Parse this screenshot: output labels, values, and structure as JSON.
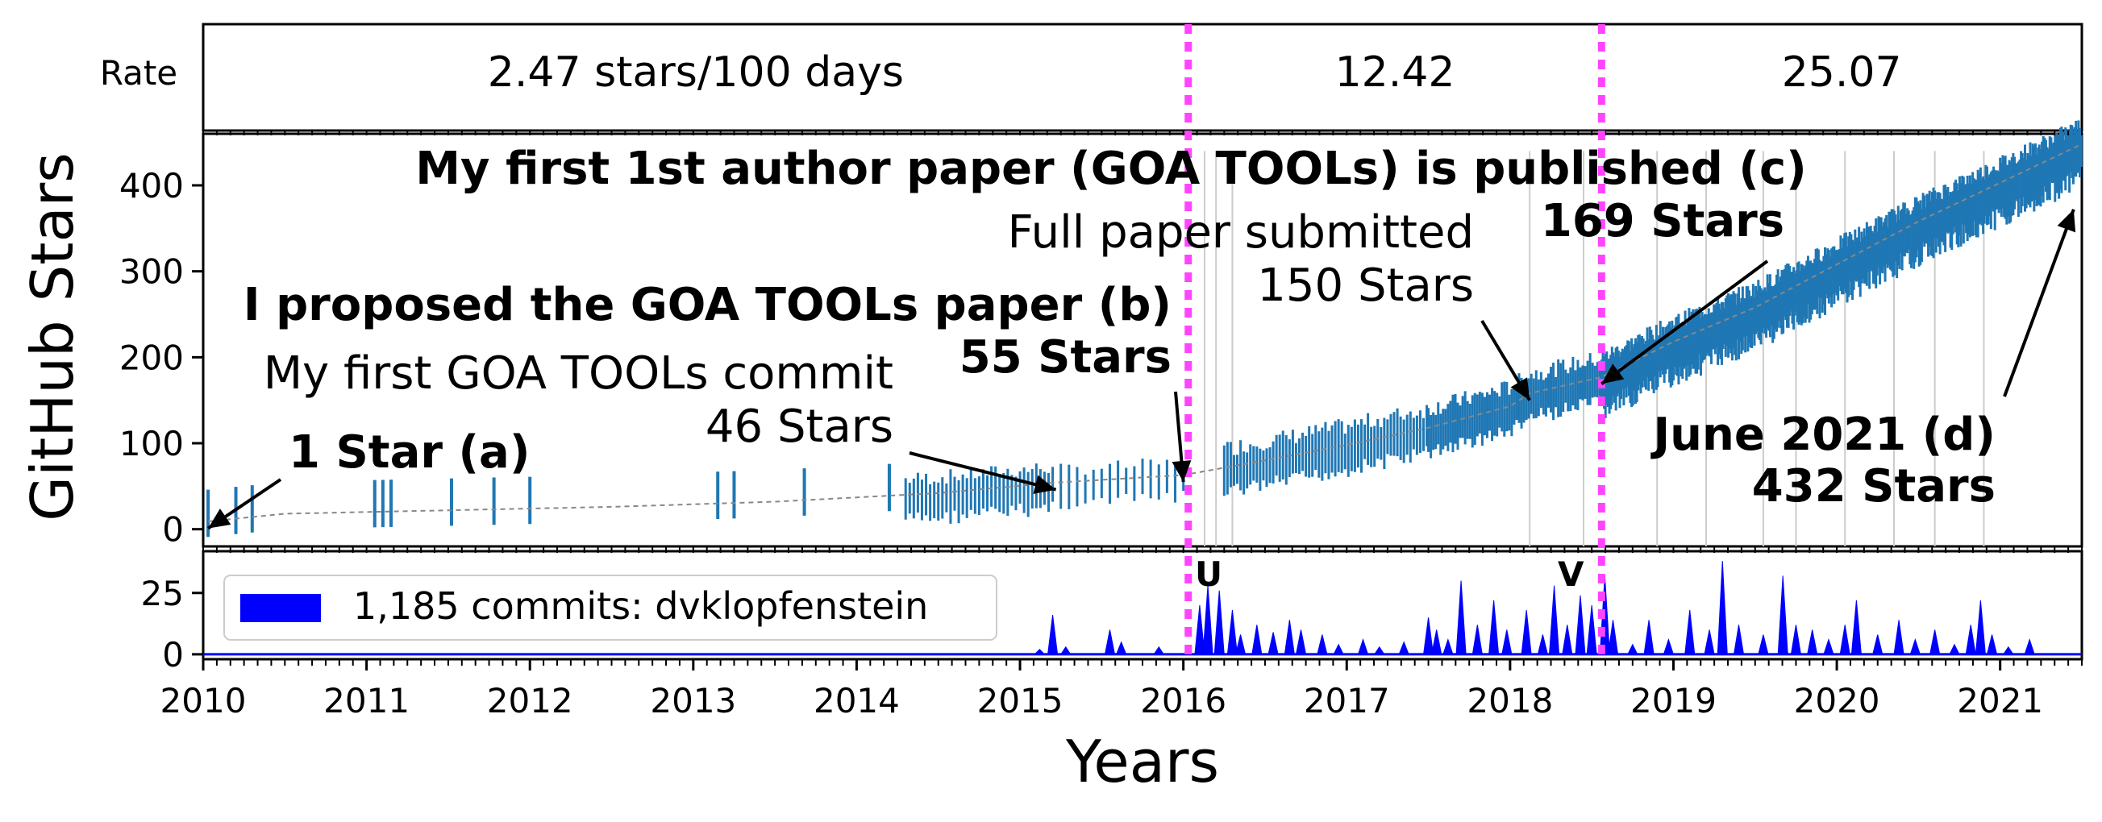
{
  "chart_data": {
    "type": "line",
    "xlabel": "Years",
    "x_ticks": [
      "2010",
      "2011",
      "2012",
      "2013",
      "2014",
      "2015",
      "2016",
      "2017",
      "2018",
      "2019",
      "2020",
      "2021"
    ],
    "xlim": [
      2010,
      2021.5
    ],
    "panels": {
      "rate": {
        "ylabel": "Rate",
        "segments": [
          {
            "label": "2.47 stars/100 days",
            "x_range": [
              2010,
              2016.03
            ]
          },
          {
            "label": "12.42",
            "x_range": [
              2016.03,
              2018.56
            ]
          },
          {
            "label": "25.07",
            "x_range": [
              2018.56,
              2021.5
            ]
          }
        ]
      },
      "stars": {
        "ylabel": "GitHub Stars",
        "ylim": [
          -20,
          460
        ],
        "yticks": [
          0,
          100,
          200,
          300,
          400
        ],
        "stars_series": [
          [
            2010.03,
            1
          ],
          [
            2010.5,
            10
          ],
          [
            2011.5,
            14
          ],
          [
            2012.5,
            18
          ],
          [
            2013.5,
            24
          ],
          [
            2014.5,
            34
          ],
          [
            2015.2,
            46
          ],
          [
            2016.0,
            55
          ],
          [
            2016.5,
            72
          ],
          [
            2017.0,
            90
          ],
          [
            2017.5,
            110
          ],
          [
            2018.0,
            135
          ],
          [
            2018.12,
            150
          ],
          [
            2018.56,
            169
          ],
          [
            2019.0,
            210
          ],
          [
            2019.5,
            250
          ],
          [
            2020.0,
            300
          ],
          [
            2020.5,
            350
          ],
          [
            2021.0,
            395
          ],
          [
            2021.5,
            440
          ]
        ],
        "annotations": {
          "a": {
            "text": "1 Star (a)",
            "x": 2010.03,
            "y": 1
          },
          "first_commit": {
            "text": "My first GOA TOOLs commit",
            "x": 2015.2
          },
          "stars_46": {
            "text": "46 Stars",
            "x": 2015.2,
            "y": 46
          },
          "b_title": {
            "text": "I proposed the GOA TOOLs paper (b)"
          },
          "b_stars": {
            "text": "55 Stars",
            "x": 2016.0,
            "y": 55
          },
          "submitted": {
            "text": "Full paper submitted"
          },
          "stars_150": {
            "text": "150 Stars",
            "x": 2018.12,
            "y": 150
          },
          "c_title": {
            "text": "My first 1st author paper (GOA TOOLs) is published (c)"
          },
          "c_stars": {
            "text": "169 Stars",
            "x": 2018.56,
            "y": 169
          },
          "d_title": {
            "text": "June 2021 (d)"
          },
          "d_stars": {
            "text": "432 Stars",
            "x": 2021.45,
            "y": 432
          }
        },
        "release_lines": [
          2016.13,
          2016.2,
          2016.3,
          2018.12,
          2018.45,
          2018.9,
          2019.2,
          2019.55,
          2019.75,
          2020.05,
          2020.35,
          2020.6,
          2020.9
        ]
      },
      "commits": {
        "yticks": [
          0,
          25
        ],
        "ylim": [
          -2,
          42
        ],
        "legend": "1,185 commits: dvklopfenstein",
        "legend_position": "upper-left",
        "markers": [
          "U",
          "V"
        ],
        "peaks": [
          [
            2015.12,
            2
          ],
          [
            2015.2,
            16
          ],
          [
            2015.28,
            3
          ],
          [
            2015.55,
            10
          ],
          [
            2015.62,
            5
          ],
          [
            2015.85,
            3
          ],
          [
            2016.1,
            20
          ],
          [
            2016.15,
            28
          ],
          [
            2016.22,
            26
          ],
          [
            2016.3,
            18
          ],
          [
            2016.35,
            8
          ],
          [
            2016.45,
            12
          ],
          [
            2016.55,
            9
          ],
          [
            2016.65,
            14
          ],
          [
            2016.72,
            10
          ],
          [
            2016.85,
            8
          ],
          [
            2016.95,
            4
          ],
          [
            2017.1,
            6
          ],
          [
            2017.2,
            3
          ],
          [
            2017.35,
            5
          ],
          [
            2017.5,
            15
          ],
          [
            2017.55,
            10
          ],
          [
            2017.62,
            6
          ],
          [
            2017.7,
            30
          ],
          [
            2017.8,
            12
          ],
          [
            2017.9,
            22
          ],
          [
            2017.98,
            10
          ],
          [
            2018.1,
            18
          ],
          [
            2018.2,
            8
          ],
          [
            2018.27,
            28
          ],
          [
            2018.35,
            12
          ],
          [
            2018.43,
            24
          ],
          [
            2018.5,
            20
          ],
          [
            2018.58,
            32
          ],
          [
            2018.63,
            14
          ],
          [
            2018.75,
            4
          ],
          [
            2018.85,
            14
          ],
          [
            2018.97,
            6
          ],
          [
            2019.1,
            18
          ],
          [
            2019.22,
            10
          ],
          [
            2019.3,
            38
          ],
          [
            2019.4,
            12
          ],
          [
            2019.55,
            8
          ],
          [
            2019.67,
            32
          ],
          [
            2019.75,
            12
          ],
          [
            2019.85,
            10
          ],
          [
            2019.95,
            6
          ],
          [
            2020.05,
            12
          ],
          [
            2020.12,
            22
          ],
          [
            2020.25,
            8
          ],
          [
            2020.38,
            14
          ],
          [
            2020.48,
            6
          ],
          [
            2020.6,
            10
          ],
          [
            2020.72,
            4
          ],
          [
            2020.82,
            12
          ],
          [
            2020.88,
            22
          ],
          [
            2020.95,
            8
          ],
          [
            2021.05,
            3
          ],
          [
            2021.18,
            6
          ]
        ]
      }
    },
    "vertical_markers": [
      2016.03,
      2018.56
    ]
  }
}
